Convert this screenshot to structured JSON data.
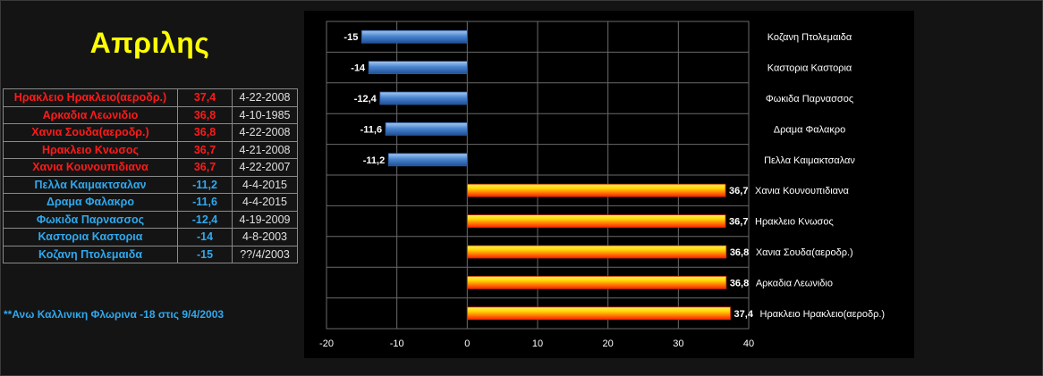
{
  "title": "Απριλης",
  "records_table": [
    {
      "kind": "hot",
      "location": "Ηρακλειο Ηρακλειο(αεροδρ.)",
      "value": "37,4",
      "date": "4-22-2008"
    },
    {
      "kind": "hot",
      "location": "Αρκαδια Λεωνιδιο",
      "value": "36,8",
      "date": "4-10-1985"
    },
    {
      "kind": "hot",
      "location": "Χανια Σουδα(αεροδρ.)",
      "value": "36,8",
      "date": "4-22-2008"
    },
    {
      "kind": "hot",
      "location": "Ηρακλειο Κνωσος",
      "value": "36,7",
      "date": "4-21-2008"
    },
    {
      "kind": "hot",
      "location": "Χανια Κουνουπιδιανα",
      "value": "36,7",
      "date": "4-22-2007"
    },
    {
      "kind": "cold",
      "location": "Πελλα Καιμακτσαλαν",
      "value": "-11,2",
      "date": "4-4-2015"
    },
    {
      "kind": "cold",
      "location": "Δραμα Φαλακρο",
      "value": "-11,6",
      "date": "4-4-2015"
    },
    {
      "kind": "cold",
      "location": "Φωκιδα Παρνασσος",
      "value": "-12,4",
      "date": "4-19-2009"
    },
    {
      "kind": "cold",
      "location": "Καστορια Καστορια",
      "value": "-14",
      "date": "4-8-2003"
    },
    {
      "kind": "cold",
      "location": "Κοζανη Πτολεμαιδα",
      "value": "-15",
      "date": "??/4/2003"
    }
  ],
  "note": "**Ανω Καλλινικη Φλωρινα  -18 στις 9/4/2003",
  "colors": {
    "title": "#ffff00",
    "hot_text": "#ff1a1a",
    "cold_text": "#2fa9ee",
    "cold_bar": "#4a86d0",
    "hot_bar_top": "#ffee00",
    "hot_bar_bottom": "#ff2a00"
  },
  "chart_data": {
    "type": "bar",
    "orientation": "horizontal",
    "categories": [
      "Κοζανη Πτολεμαιδα",
      "Καστορια Καστορια",
      "Φωκιδα Παρνασσος",
      "Δραμα Φαλακρο",
      "Πελλα Καιμακτσαλαν",
      "Χανια Κουνουπιδιανα",
      "Ηρακλειο Κνωσος",
      "Χανια Σουδα(αεροδρ.)",
      "Αρκαδια Λεωνιδιο",
      "Ηρακλειο Ηρακλειο(αεροδρ.)"
    ],
    "values": [
      -15,
      -14,
      -12.4,
      -11.6,
      -11.2,
      36.7,
      36.7,
      36.8,
      36.8,
      37.4
    ],
    "value_labels": [
      "-15",
      "-14",
      "-12,4",
      "-11,6",
      "-11,2",
      "36,7",
      "36,7",
      "36,8",
      "36,8",
      "37,4"
    ],
    "xlim": [
      -20,
      40
    ],
    "xticks": [
      -20,
      -10,
      0,
      10,
      20,
      30,
      40
    ],
    "grid": true,
    "legend": "none",
    "title": "",
    "xlabel": "",
    "ylabel": ""
  }
}
